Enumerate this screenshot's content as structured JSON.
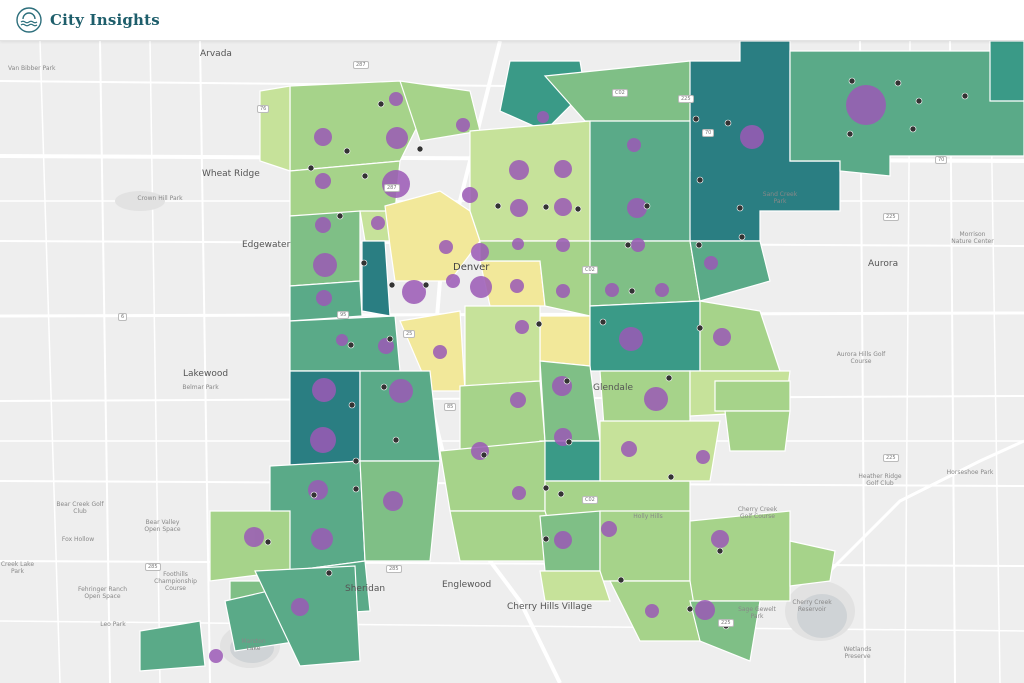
{
  "header": {
    "title": "City Insights",
    "logo_icon": "water-sun-logo-icon"
  },
  "colors": {
    "accent": "#1e5e6b",
    "choropleth": [
      "#2a7e82",
      "#3a9a87",
      "#5aaa88",
      "#7fbf86",
      "#a6d38a",
      "#c6e29a",
      "#f2e89a"
    ],
    "bubble": "#9b59b6",
    "marker": "#333333"
  },
  "map": {
    "place_labels": [
      {
        "text": "Arvada",
        "kind": "city"
      },
      {
        "text": "Van Bibber Park",
        "kind": "small"
      },
      {
        "text": "Wheat Ridge",
        "kind": "city"
      },
      {
        "text": "Crown Hill Park",
        "kind": "small"
      },
      {
        "text": "Edgewater",
        "kind": "city"
      },
      {
        "text": "Denver",
        "kind": "center"
      },
      {
        "text": "Aurora",
        "kind": "city"
      },
      {
        "text": "Morrison Nature Center",
        "kind": "small"
      },
      {
        "text": "Lakewood",
        "kind": "city"
      },
      {
        "text": "Belmar Park",
        "kind": "small"
      },
      {
        "text": "Glendale",
        "kind": "city"
      },
      {
        "text": "Aurora Hills Golf Course",
        "kind": "small"
      },
      {
        "text": "Heather Ridge Golf Club",
        "kind": "small"
      },
      {
        "text": "Horseshoe Park",
        "kind": "small"
      },
      {
        "text": "Bear Creek Golf Club",
        "kind": "small"
      },
      {
        "text": "Bear Valley Open Space",
        "kind": "small"
      },
      {
        "text": "Fox Hollow",
        "kind": "small"
      },
      {
        "text": "Foothills Championship Course",
        "kind": "small"
      },
      {
        "text": "Fehringer Ranch Open Space",
        "kind": "small"
      },
      {
        "text": "Creek Lake Park",
        "kind": "small"
      },
      {
        "text": "Sheridan",
        "kind": "city"
      },
      {
        "text": "Englewood",
        "kind": "city"
      },
      {
        "text": "Cherry Hills Village",
        "kind": "city"
      },
      {
        "text": "Cherry Creek Golf Course",
        "kind": "small"
      },
      {
        "text": "Holly Hills",
        "kind": "small"
      },
      {
        "text": "Cherry Creek Reservoir",
        "kind": "small"
      },
      {
        "text": "Wetlands Preserve",
        "kind": "small"
      },
      {
        "text": "Marston Lake",
        "kind": "small"
      },
      {
        "text": "Sage Gewelt Park",
        "kind": "small"
      },
      {
        "text": "Leo Park",
        "kind": "small"
      },
      {
        "text": "Sand Creek Park",
        "kind": "small"
      }
    ],
    "shields": [
      "287",
      "76",
      "70",
      "225",
      "6",
      "25",
      "95",
      "285",
      "85",
      "225",
      "285",
      "225",
      "225",
      "C02",
      "C02",
      "C02",
      "287",
      "70"
    ]
  }
}
